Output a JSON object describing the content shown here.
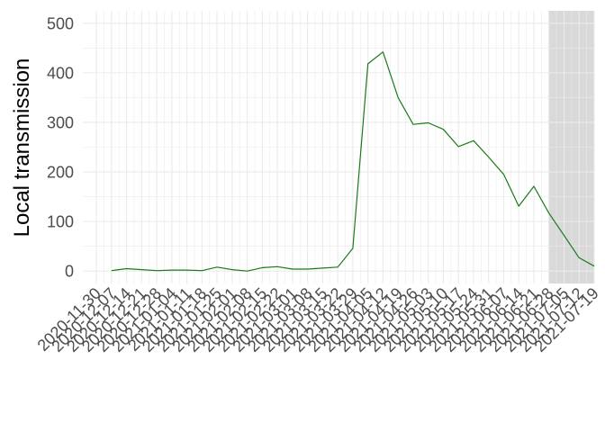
{
  "chart_data": {
    "type": "line",
    "title": "",
    "xlabel": "",
    "ylabel": "Local transmission",
    "ylim": [
      -25,
      525
    ],
    "yticks": [
      0,
      100,
      200,
      300,
      400,
      500
    ],
    "grid": true,
    "legend": "none",
    "line_color": "#1a7a1a",
    "shade_color": "#d9d9d9",
    "shaded_from": "2021-07-05",
    "x_tick_labels": [
      "2020-11-30",
      "2020-12-07",
      "2020-12-14",
      "2020-12-21",
      "2020-12-28",
      "2021-01-04",
      "2021-01-11",
      "2021-01-18",
      "2021-01-25",
      "2021-02-01",
      "2021-02-08",
      "2021-02-15",
      "2021-02-22",
      "2021-03-01",
      "2021-03-08",
      "2021-03-15",
      "2021-03-22",
      "2021-03-29",
      "2021-04-05",
      "2021-04-12",
      "2021-04-19",
      "2021-04-26",
      "2021-05-03",
      "2021-05-10",
      "2021-05-17",
      "2021-05-24",
      "2021-05-31",
      "2021-06-07",
      "2021-06-14",
      "2021-06-21",
      "2021-06-28",
      "2021-07-05",
      "2021-07-12",
      "2021-07-19"
    ],
    "series": [
      {
        "x": [
          "2020-12-07",
          "2020-12-14",
          "2020-12-21",
          "2020-12-28",
          "2021-01-04",
          "2021-01-11",
          "2021-01-18",
          "2021-01-25",
          "2021-02-01",
          "2021-02-08",
          "2021-02-15",
          "2021-02-22",
          "2021-03-01",
          "2021-03-08",
          "2021-03-15",
          "2021-03-22",
          "2021-03-29",
          "2021-04-05",
          "2021-04-12",
          "2021-04-19",
          "2021-04-26",
          "2021-05-03",
          "2021-05-10",
          "2021-05-17",
          "2021-05-24",
          "2021-05-31",
          "2021-06-07",
          "2021-06-14",
          "2021-06-21",
          "2021-06-28",
          "2021-07-05",
          "2021-07-12",
          "2021-07-19"
        ],
        "values": [
          1,
          5,
          3,
          1,
          2,
          2,
          1,
          8,
          3,
          0,
          7,
          9,
          4,
          4,
          6,
          8,
          46,
          418,
          442,
          350,
          296,
          299,
          286,
          251,
          263,
          230,
          195,
          131,
          171,
          117,
          72,
          27,
          10
        ]
      }
    ]
  }
}
